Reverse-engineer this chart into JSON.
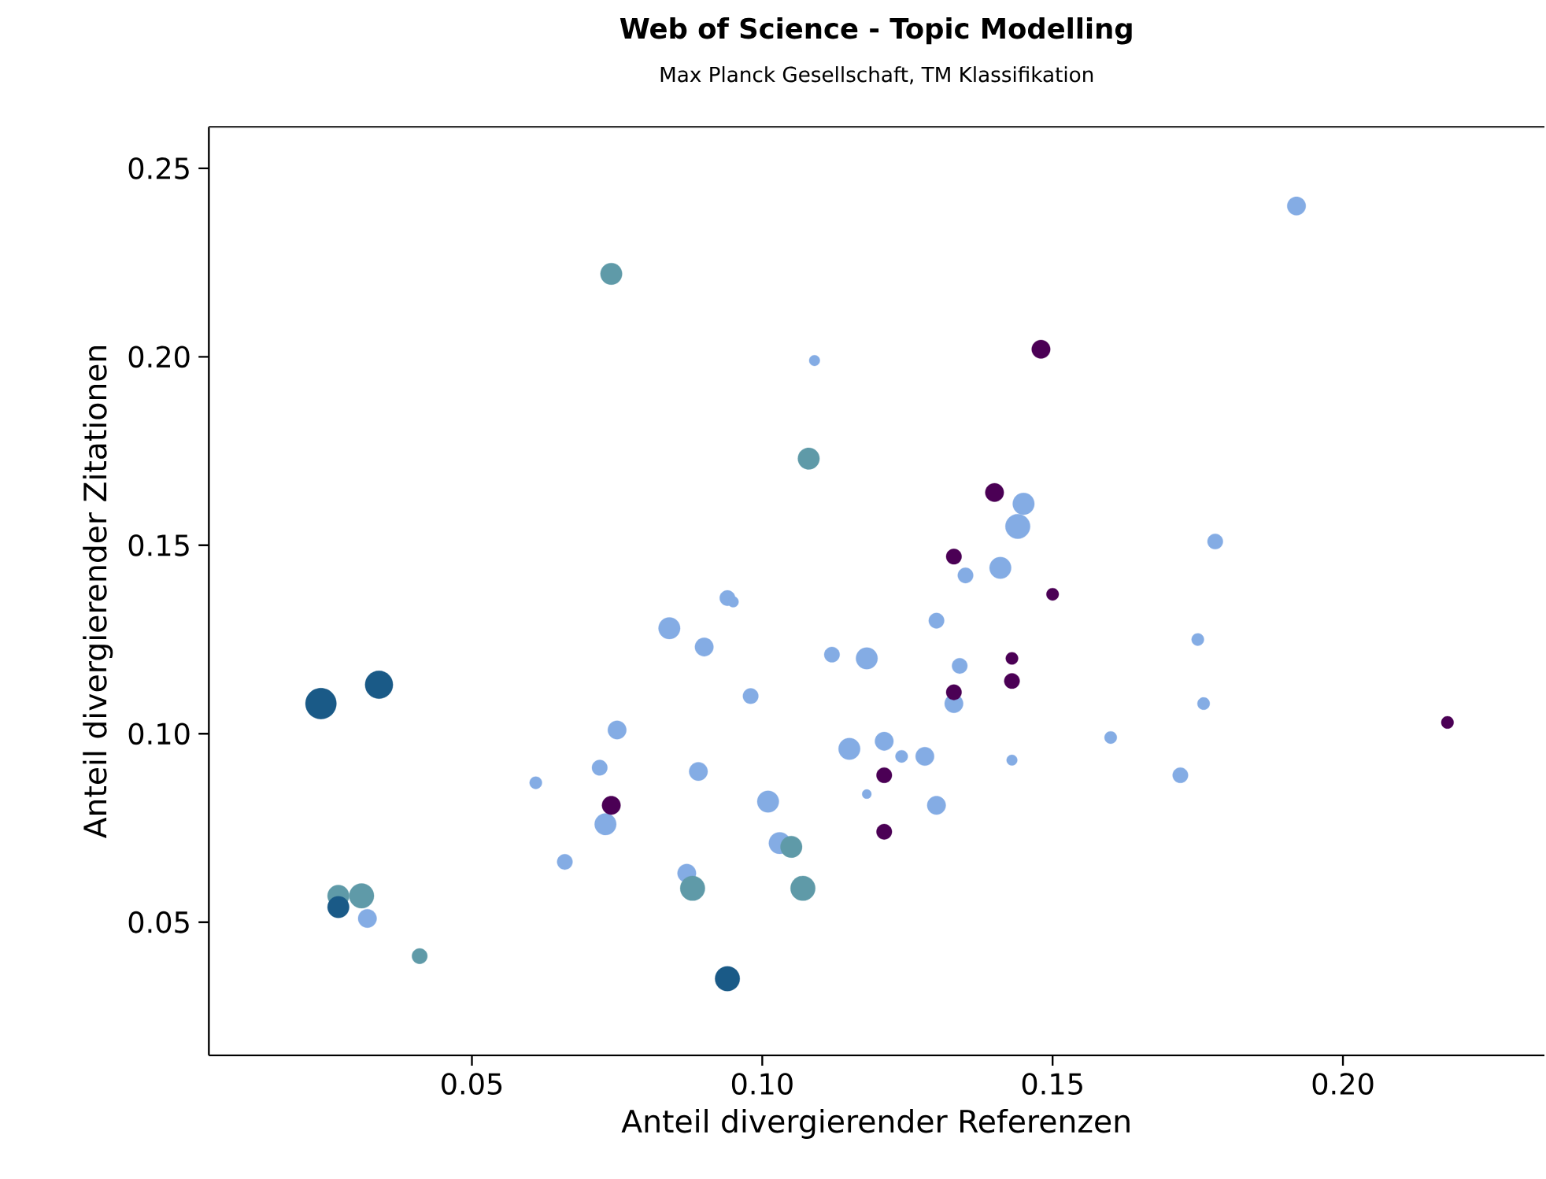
{
  "chart_data": {
    "type": "bubble",
    "title": "Web of Science - Topic Modelling",
    "subtitle": "Max Planck Gesellschaft, TM Klassifikation",
    "xlabel": "Anteil divergierender Referenzen",
    "ylabel": "Anteil divergierender Zitationen",
    "marker": "circle",
    "xlim": [
      0.0047,
      0.2347
    ],
    "ylim": [
      0.0147,
      0.261
    ],
    "xticks": [
      0.05,
      {
        "value": 0.1,
        "label": "0.10"
      },
      0.15,
      {
        "value": 0.2,
        "label": "0.20"
      }
    ],
    "yticks": [
      0.05,
      {
        "value": 0.1,
        "label": "0.10"
      },
      0.15,
      {
        "value": 0.2,
        "label": "0.20"
      },
      0.25
    ],
    "series": [
      {
        "color": "#84ace4",
        "x": [
          0.192,
          0.109,
          0.145,
          0.144,
          0.141,
          0.135,
          0.178,
          0.175,
          0.176,
          0.16,
          0.172,
          0.143,
          0.13,
          0.134,
          0.133,
          0.118,
          0.112,
          0.094,
          0.095,
          0.084,
          0.09,
          0.098,
          0.075,
          0.072,
          0.061,
          0.073,
          0.066,
          0.089,
          0.101,
          0.103,
          0.087,
          0.115,
          0.121,
          0.124,
          0.128,
          0.118,
          0.13,
          0.032
        ],
        "values": [
          0.24,
          0.199,
          0.161,
          0.155,
          0.144,
          0.142,
          0.151,
          0.125,
          0.108,
          0.099,
          0.089,
          0.093,
          0.13,
          0.118,
          0.108,
          0.12,
          0.121,
          0.136,
          0.135,
          0.128,
          0.123,
          0.11,
          0.101,
          0.091,
          0.087,
          0.076,
          0.066,
          0.09,
          0.082,
          0.071,
          0.063,
          0.096,
          0.098,
          0.094,
          0.094,
          0.084,
          0.081,
          0.051
        ],
        "sizes": [
          0.36,
          0.12,
          0.49,
          0.64,
          0.49,
          0.25,
          0.25,
          0.16,
          0.16,
          0.16,
          0.25,
          0.12,
          0.25,
          0.25,
          0.36,
          0.49,
          0.25,
          0.25,
          0.12,
          0.49,
          0.36,
          0.25,
          0.36,
          0.25,
          0.16,
          0.49,
          0.25,
          0.36,
          0.49,
          0.49,
          0.36,
          0.49,
          0.36,
          0.16,
          0.36,
          0.09,
          0.36,
          0.36
        ]
      },
      {
        "color": "#5f9aa8",
        "x": [
          0.074,
          0.108,
          0.027,
          0.031,
          0.041,
          0.088,
          0.107,
          0.105
        ],
        "values": [
          0.222,
          0.173,
          0.057,
          0.057,
          0.041,
          0.059,
          0.059,
          0.07
        ],
        "sizes": [
          0.49,
          0.49,
          0.49,
          0.64,
          0.25,
          0.64,
          0.64,
          0.49
        ]
      },
      {
        "color": "#1a5a87",
        "x": [
          0.024,
          0.034,
          0.027,
          0.094
        ],
        "values": [
          0.108,
          0.113,
          0.054,
          0.035
        ],
        "sizes": [
          1,
          0.81,
          0.49,
          0.64
        ]
      },
      {
        "color": "#4b0055",
        "x": [
          0.148,
          0.14,
          0.133,
          0.15,
          0.143,
          0.143,
          0.133,
          0.121,
          0.121,
          0.074,
          0.218
        ],
        "values": [
          0.202,
          0.164,
          0.147,
          0.137,
          0.12,
          0.114,
          0.111,
          0.089,
          0.074,
          0.081,
          0.103
        ],
        "sizes": [
          0.36,
          0.36,
          0.25,
          0.16,
          0.16,
          0.25,
          0.25,
          0.25,
          0.25,
          0.36,
          0.16
        ]
      }
    ]
  }
}
